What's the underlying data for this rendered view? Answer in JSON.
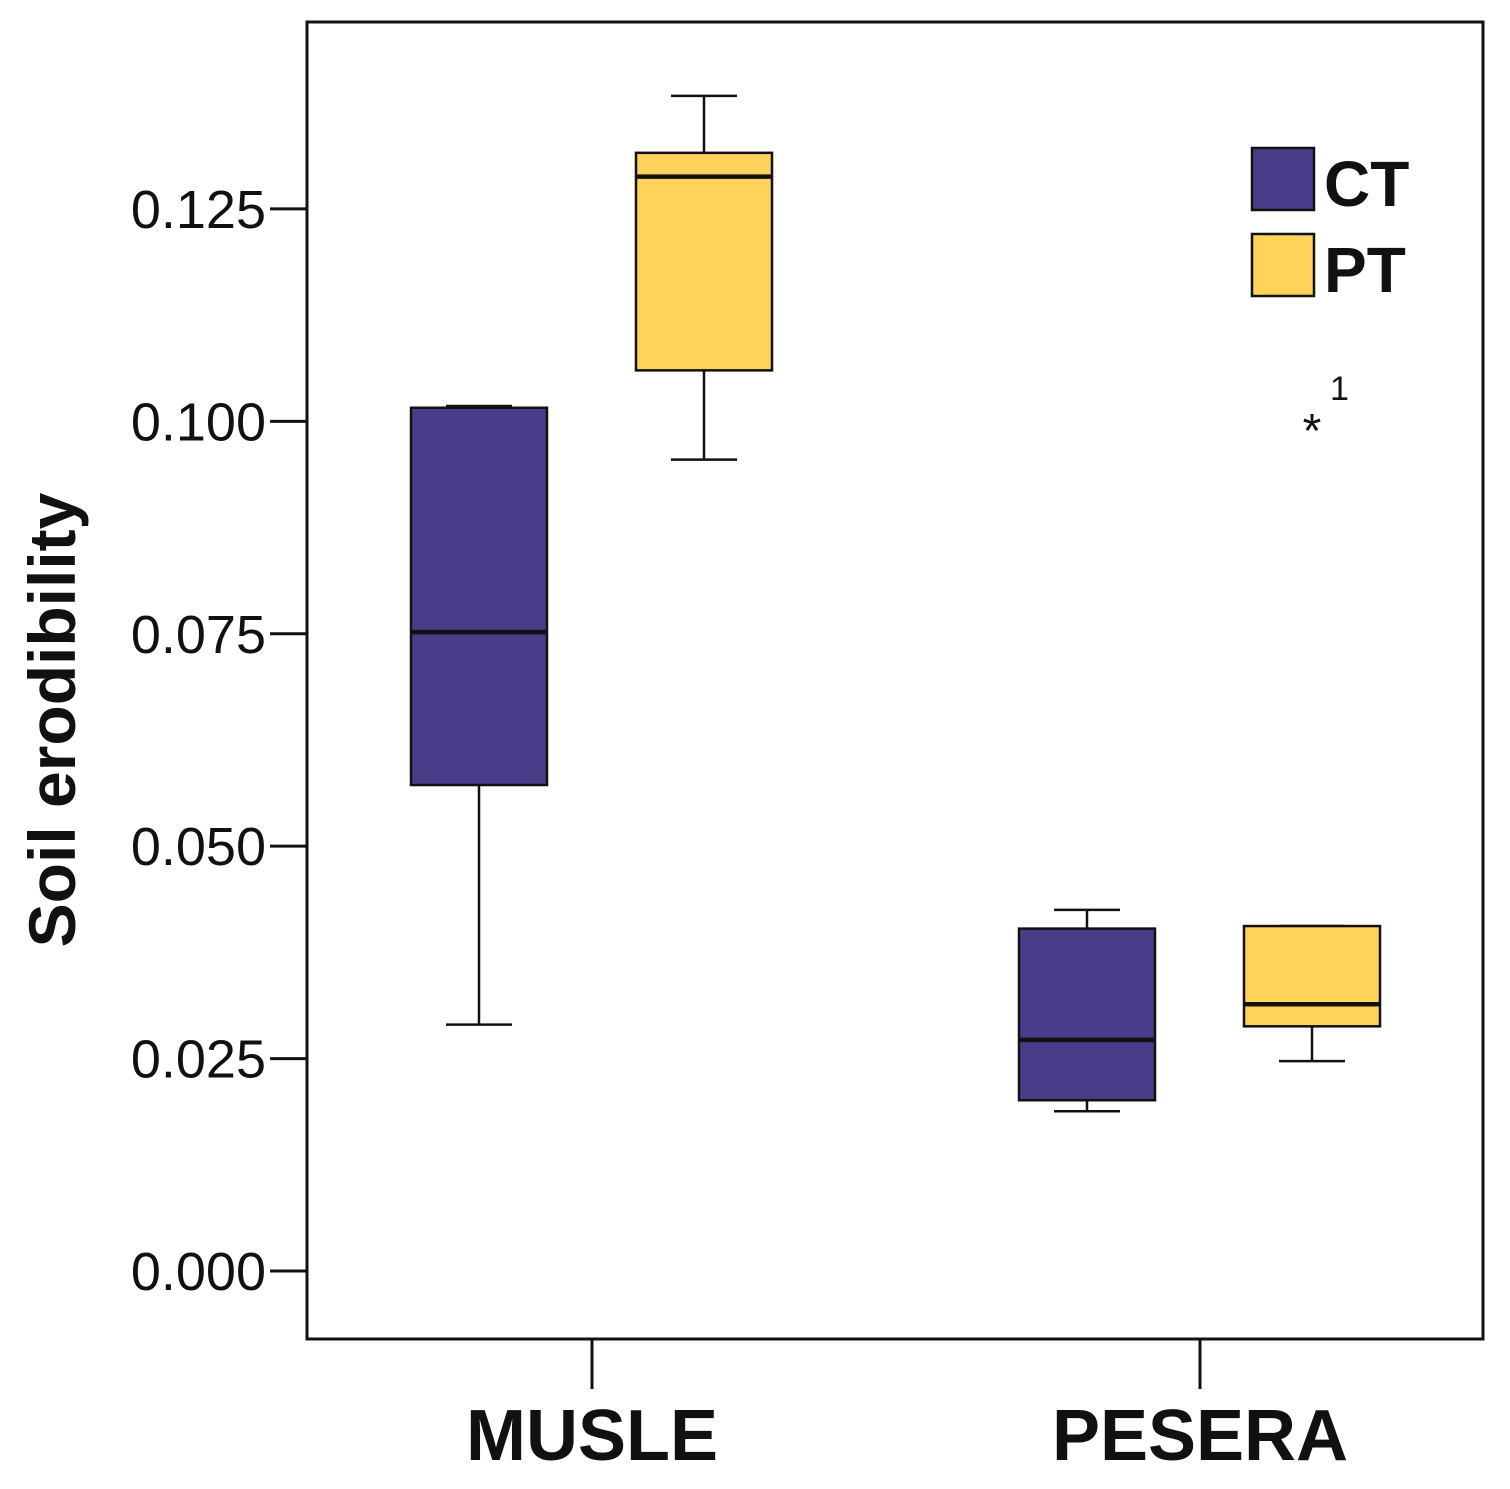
{
  "chart_data": {
    "type": "boxplot",
    "title": "",
    "xlabel": "",
    "ylabel": "Soil erodibility",
    "ylim": [
      -0.008,
      0.147
    ],
    "yticks": [
      "0.000",
      "0.025",
      "0.050",
      "0.075",
      "0.100",
      "0.125"
    ],
    "ytick_values": [
      0.0,
      0.025,
      0.05,
      0.075,
      0.1,
      0.125
    ],
    "categories": [
      "MUSLE",
      "PESERA"
    ],
    "legend": {
      "position": "top-right"
    },
    "series": [
      {
        "name": "CT",
        "color": "#4a3c88",
        "boxes": [
          {
            "category": "MUSLE",
            "min": 0.029,
            "q1": 0.0572,
            "median": 0.0752,
            "q3": 0.1016,
            "max": 0.1018
          },
          {
            "category": "PESERA",
            "min": 0.0188,
            "q1": 0.0201,
            "median": 0.0272,
            "q3": 0.0403,
            "max": 0.0425
          }
        ]
      },
      {
        "name": "PT",
        "color": "#ffd35a",
        "boxes": [
          {
            "category": "MUSLE",
            "min": 0.0955,
            "q1": 0.106,
            "median": 0.1288,
            "q3": 0.1316,
            "max": 0.1383
          },
          {
            "category": "PESERA",
            "min": 0.0247,
            "q1": 0.0288,
            "median": 0.0314,
            "q3": 0.0406,
            "max": 0.0406,
            "outliers": [
              {
                "value": 0.1005,
                "label": "1"
              }
            ]
          }
        ]
      }
    ]
  }
}
